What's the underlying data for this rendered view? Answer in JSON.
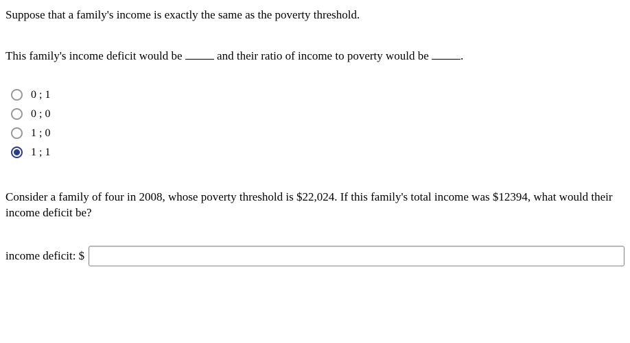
{
  "question1": {
    "line1": "Suppose that a family's income is exactly the same as the poverty threshold.",
    "line2_pre": "This family's income deficit would be ",
    "line2_mid": " and their ratio of income to poverty would be ",
    "line2_post": ".",
    "options": [
      {
        "label": "0 ; 1",
        "selected": false
      },
      {
        "label": "0 ; 0",
        "selected": false
      },
      {
        "label": "1 ; 0",
        "selected": false
      },
      {
        "label": "1 ; 1",
        "selected": true
      }
    ]
  },
  "question2": {
    "text": "Consider a family of four in 2008, whose poverty threshold is $22,024. If this family's total income was $12394, what would their income deficit be?",
    "input_label": "income deficit: $",
    "input_value": ""
  }
}
